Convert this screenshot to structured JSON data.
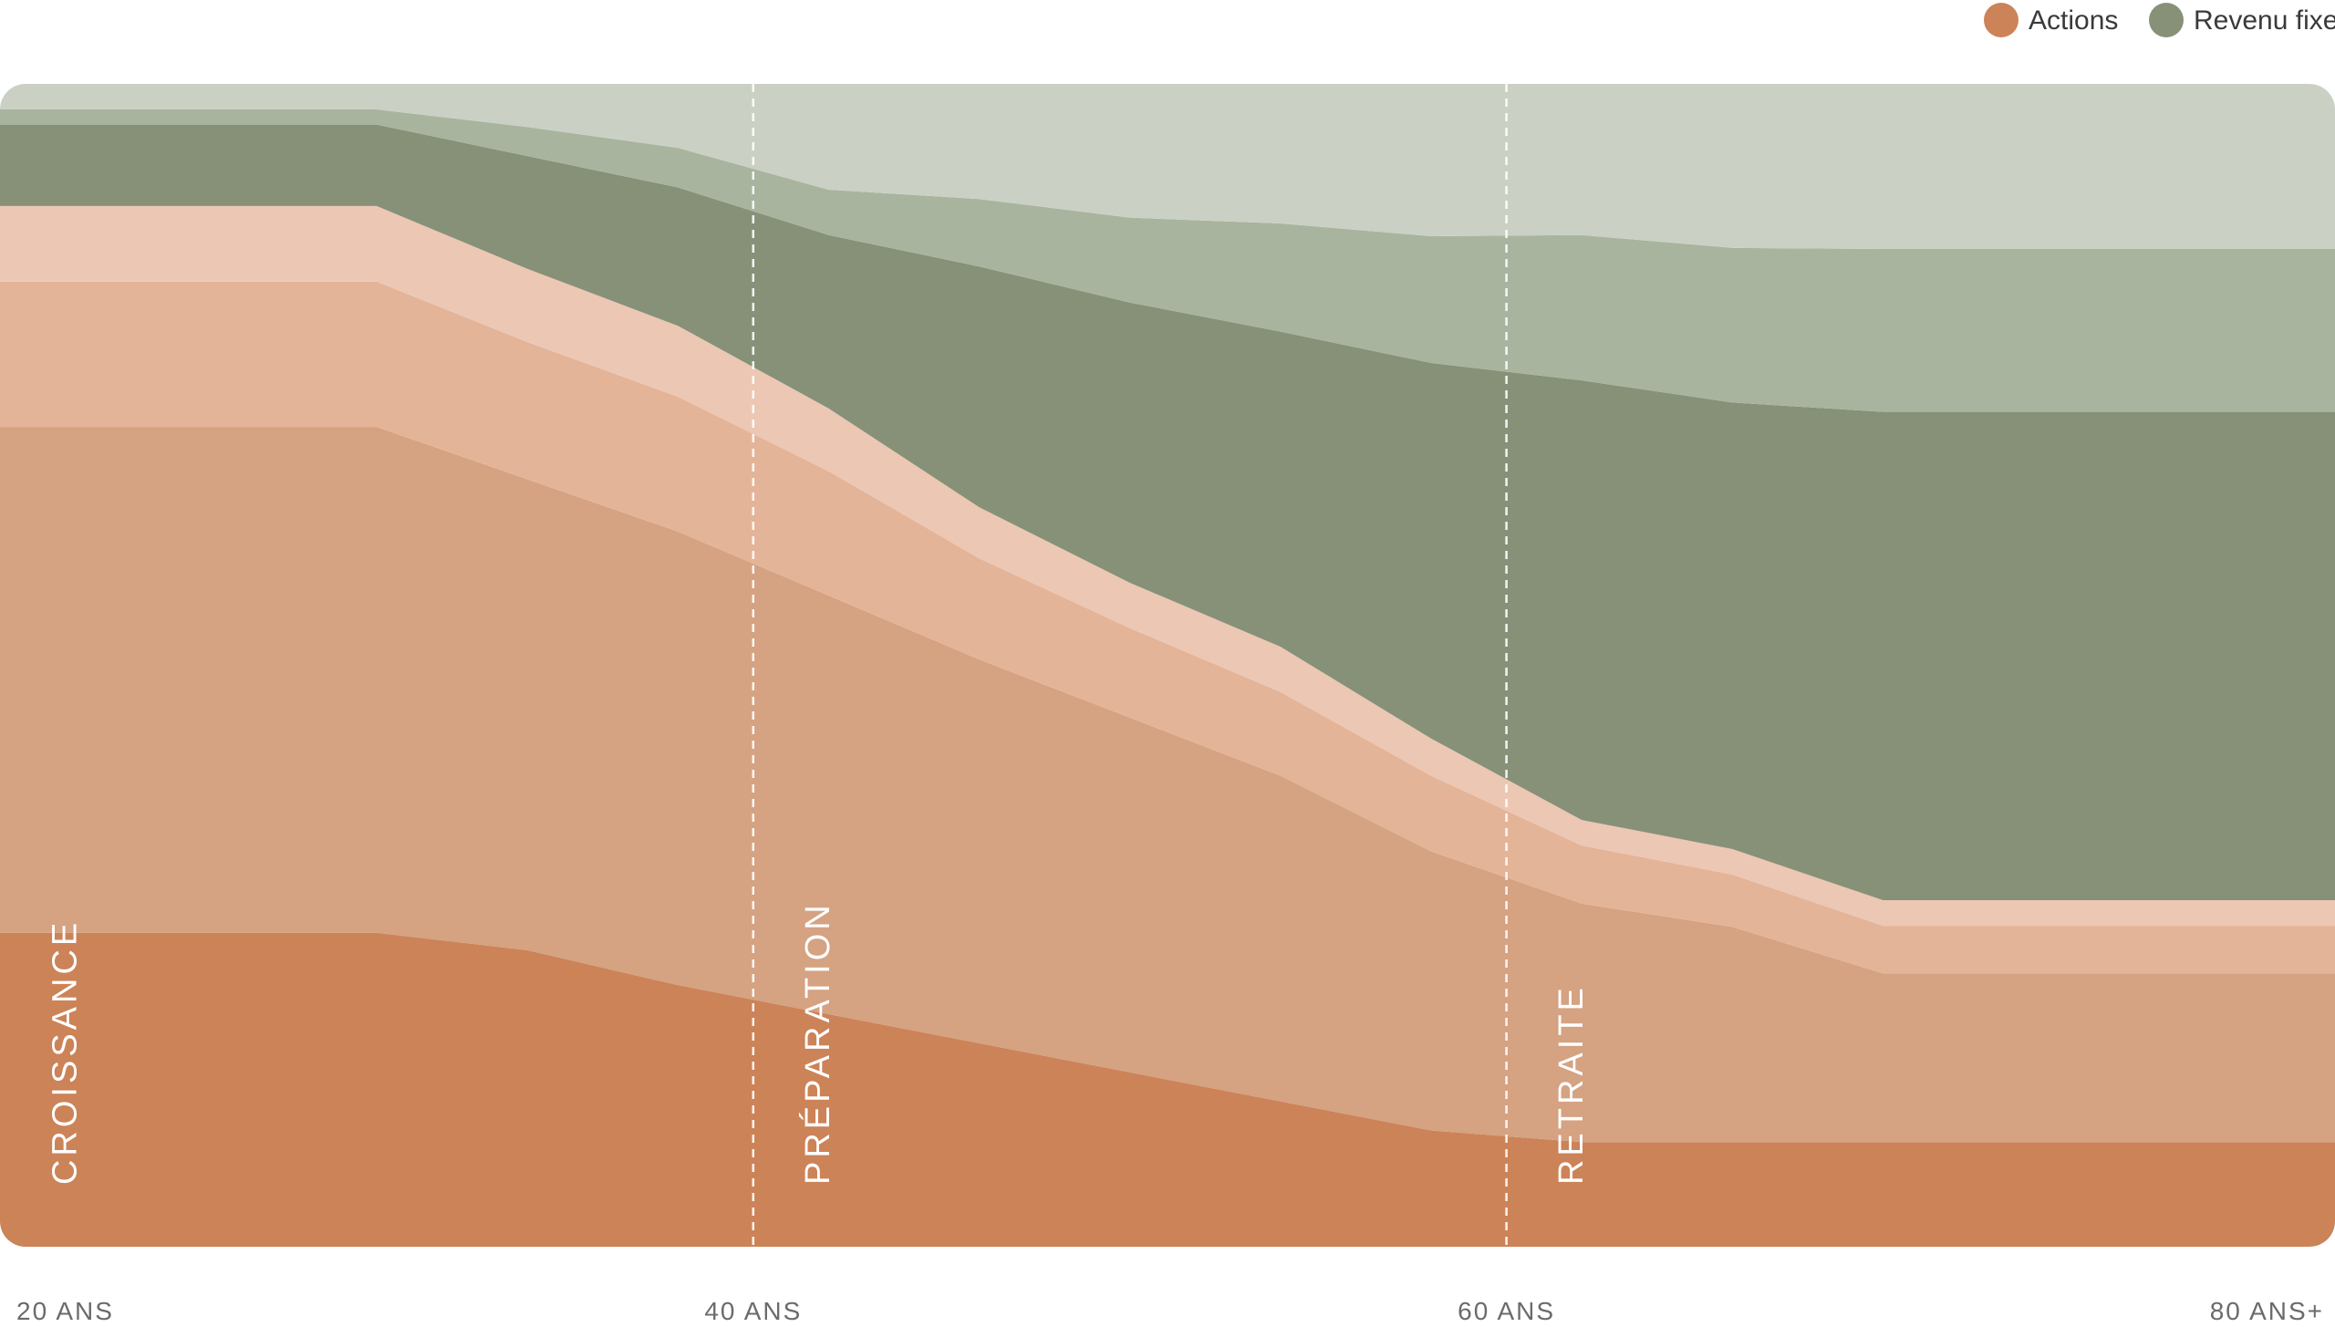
{
  "chart_data": {
    "type": "area",
    "stacked": true,
    "normalized_to_percent": true,
    "x": [
      20,
      26,
      30,
      34,
      38,
      42,
      46,
      50,
      54,
      58,
      62,
      66,
      70,
      74,
      78,
      82
    ],
    "xlim": [
      20,
      82
    ],
    "ylim": [
      0,
      100
    ],
    "x_ticks": [
      {
        "value": 20,
        "label": "20 ANS"
      },
      {
        "value": 40,
        "label": "40 ANS"
      },
      {
        "value": 60,
        "label": "60 ANS"
      },
      {
        "value": 80,
        "label": "80 ANS+"
      }
    ],
    "phase_dividers": [
      40,
      60
    ],
    "phase_labels": [
      {
        "label": "CROISSANCE",
        "x": 21
      },
      {
        "label": "PRÉPARATION",
        "x": 41
      },
      {
        "label": "RETRAITE",
        "x": 61
      }
    ],
    "series": [
      {
        "group": "Actions",
        "color": "#CC8358",
        "values": [
          27,
          27,
          27,
          25.5,
          22.5,
          20,
          17.5,
          15,
          12.5,
          10,
          9,
          9,
          9,
          9,
          9,
          9
        ]
      },
      {
        "group": "Actions",
        "color": "#D5A282",
        "values": [
          43.5,
          43.5,
          43.5,
          40.5,
          39,
          36,
          33,
          30.5,
          28,
          24,
          20.5,
          18.5,
          14.5,
          14.5,
          14.5,
          14.5
        ]
      },
      {
        "group": "Actions",
        "color": "#E4B498",
        "values": [
          12.5,
          12.5,
          12.5,
          11.8,
          11.6,
          10.7,
          8.7,
          7.7,
          7.2,
          6.5,
          5,
          4.5,
          4.1,
          4.1,
          4.1,
          4.1
        ]
      },
      {
        "group": "Actions",
        "color": "#ECC7B4",
        "values": [
          6.5,
          6.5,
          6.5,
          6.3,
          6.1,
          5.4,
          4.4,
          3.9,
          3.9,
          3.2,
          2.2,
          2.2,
          2.2,
          2.2,
          2.2,
          2.2
        ]
      },
      {
        "group": "Revenu fixe",
        "color": "#869178",
        "values": [
          7,
          7,
          7,
          9.7,
          11.9,
          14.9,
          20.7,
          24.1,
          27.1,
          32.3,
          37.8,
          38.4,
          42,
          42,
          42,
          42
        ]
      },
      {
        "group": "Revenu fixe",
        "color": "#A9B49F",
        "values": [
          1.3,
          1.3,
          1.3,
          2.5,
          3.4,
          3.9,
          5.8,
          7.3,
          9.3,
          10.9,
          12.5,
          13.3,
          14,
          14,
          14,
          14
        ]
      },
      {
        "group": "Revenu fixe",
        "color": "#CAD1C4",
        "values": [
          2.2,
          2.2,
          2.2,
          3.7,
          5.5,
          9.1,
          9.9,
          11.5,
          12,
          13.1,
          13,
          14.9,
          14.2,
          14.2,
          14.2,
          14.2
        ]
      }
    ],
    "legend": {
      "placement": "top-right",
      "items": [
        {
          "label": "Actions",
          "color": "#CC8358"
        },
        {
          "label": "Revenu fixe",
          "color": "#869178"
        }
      ]
    },
    "title": "",
    "xlabel": "",
    "ylabel": "",
    "grid": false
  }
}
